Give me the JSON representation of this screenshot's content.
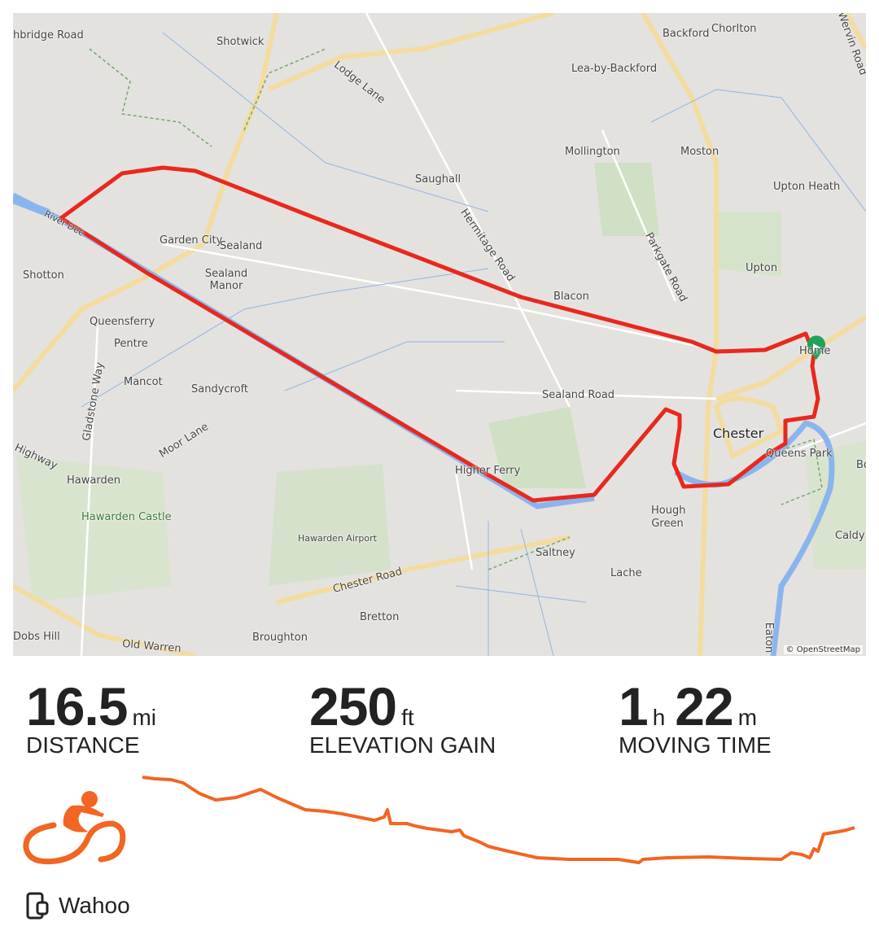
{
  "map": {
    "labels": [
      "Shotwick",
      "Lodge Lane",
      "Backford",
      "Chorlton",
      "Lea-by-Backford",
      "Wervin Road",
      "Mollington",
      "Moston",
      "Saughall",
      "Upton Heath",
      "Hermitage Road",
      "Parkgate Road",
      "Garden City",
      "Sealand",
      "Sealand Manor",
      "Shotton",
      "River Dee",
      "Queensferry",
      "Pentre",
      "Blacon",
      "Upton",
      "Home",
      "Mancot",
      "Sandycroft",
      "Sealand Road",
      "Chester",
      "Queens Park",
      "Gladstone Way",
      "Moor Lane",
      "Highway",
      "Hawarden",
      "Hawarden Castle",
      "Higher Ferry",
      "Hough Green",
      "Hawarden Airport",
      "Saltney",
      "Lache",
      "Chester Road",
      "Bretton",
      "Dobs Hill",
      "Old Warren",
      "Broughton",
      "Caldy",
      "Eaton",
      "hbridge Road",
      "Bo"
    ],
    "attribution": "© OpenStreetMap",
    "route_color": "#e8281e",
    "start_marker_color": "#1fa35a"
  },
  "stats": [
    {
      "value": "16.5",
      "unit": "mi",
      "label": "DISTANCE"
    },
    {
      "value": "250",
      "unit": "ft",
      "label": "ELEVATION GAIN"
    },
    {
      "value_h": "1",
      "unit_h": "h",
      "value_m": "22",
      "unit_m": "m",
      "label": "MOVING TIME"
    }
  ],
  "activity_icon": "cycling-icon",
  "accent_color": "#f26522",
  "device": {
    "icon": "device-icon",
    "name": "Wahoo"
  }
}
